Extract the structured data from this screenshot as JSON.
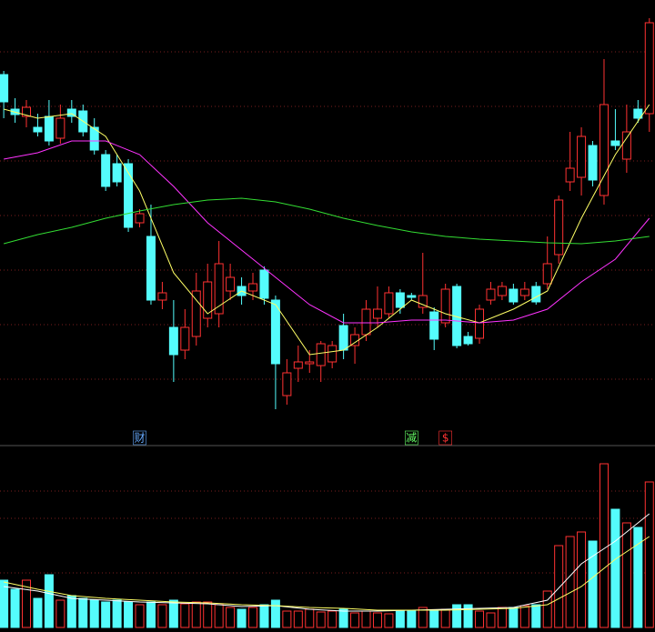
{
  "chart_data": {
    "type": "candlestick",
    "x": [
      0,
      1,
      2,
      3,
      4,
      5,
      6,
      7,
      8,
      9,
      10,
      11,
      12,
      13,
      14,
      15,
      16,
      17,
      18,
      19,
      20,
      21,
      22,
      23,
      24,
      25,
      26,
      27,
      28,
      29,
      30,
      31,
      32,
      33,
      34,
      35,
      36,
      37,
      38,
      39,
      40,
      41,
      42,
      43,
      44,
      45,
      46,
      47,
      48,
      49,
      50,
      51,
      52,
      53,
      54,
      55,
      56,
      57
    ],
    "xlim": [
      -0.33,
      57.5
    ],
    "ylim": [
      0,
      490
    ],
    "up_color": "#ff3232",
    "down_color": "#54fcfc",
    "grid_levels": [
      433,
      373,
      313,
      253,
      193,
      133,
      73
    ],
    "open": [
      408,
      370,
      362,
      350,
      362,
      338,
      370,
      368,
      350,
      320,
      310,
      310,
      245,
      230,
      160,
      130,
      105,
      120,
      140,
      145,
      170,
      175,
      170,
      193,
      160,
      55,
      85,
      90,
      88,
      92,
      132,
      110,
      122,
      140,
      145,
      168,
      165,
      152,
      147,
      135,
      175,
      120,
      118,
      160,
      165,
      172,
      165,
      175,
      178,
      210,
      290,
      295,
      330,
      275,
      335,
      315,
      370,
      365
    ],
    "high": [
      412,
      382,
      380,
      365,
      380,
      375,
      380,
      375,
      360,
      325,
      320,
      315,
      260,
      265,
      180,
      160,
      150,
      190,
      200,
      225,
      200,
      185,
      190,
      197,
      165,
      95,
      110,
      105,
      115,
      115,
      145,
      130,
      160,
      175,
      175,
      172,
      168,
      212,
      152,
      178,
      178,
      125,
      155,
      180,
      180,
      178,
      180,
      180,
      230,
      275,
      345,
      350,
      335,
      425,
      370,
      375,
      380,
      470
    ],
    "low": [
      360,
      355,
      350,
      340,
      330,
      332,
      355,
      340,
      320,
      280,
      285,
      235,
      240,
      155,
      150,
      70,
      95,
      110,
      130,
      130,
      160,
      155,
      160,
      155,
      40,
      45,
      70,
      80,
      70,
      85,
      95,
      90,
      115,
      130,
      140,
      145,
      160,
      145,
      105,
      130,
      107,
      110,
      112,
      155,
      160,
      155,
      160,
      155,
      172,
      200,
      280,
      275,
      285,
      265,
      325,
      300,
      355,
      345
    ],
    "close": [
      378,
      364,
      372,
      345,
      335,
      360,
      362,
      345,
      325,
      285,
      290,
      240,
      255,
      160,
      168,
      100,
      130,
      170,
      180,
      200,
      185,
      165,
      178,
      162,
      90,
      80,
      92,
      92,
      112,
      110,
      105,
      122,
      150,
      150,
      168,
      152,
      163,
      165,
      117,
      172,
      110,
      112,
      150,
      172,
      175,
      158,
      172,
      158,
      200,
      270,
      305,
      340,
      292,
      375,
      330,
      345,
      360,
      465
    ],
    "ma_x": [
      0,
      3,
      6,
      9,
      12,
      15,
      18,
      21,
      24,
      27,
      30,
      33,
      36,
      39,
      42,
      45,
      48,
      51,
      54,
      57
    ],
    "ma_series": [
      {
        "color": "#ffff66",
        "values": [
          370,
          360,
          365,
          340,
          280,
          190,
          145,
          170,
          155,
          100,
          105,
          130,
          160,
          145,
          135,
          150,
          170,
          250,
          320,
          375
        ]
      },
      {
        "color": "#ff33ff",
        "values": [
          315,
          322,
          335,
          335,
          320,
          285,
          245,
          215,
          185,
          155,
          135,
          135,
          138,
          138,
          135,
          138,
          150,
          180,
          205,
          250
        ]
      },
      {
        "color": "#33dd33",
        "values": [
          222,
          232,
          240,
          250,
          258,
          265,
          270,
          272,
          268,
          260,
          250,
          242,
          235,
          230,
          227,
          225,
          223,
          222,
          225,
          230
        ]
      }
    ],
    "volume": {
      "ylim": [
        0,
        200
      ],
      "grid_levels": [
        150,
        120,
        60
      ],
      "values": [
        52,
        42,
        52,
        32,
        58,
        30,
        35,
        32,
        30,
        28,
        30,
        28,
        25,
        28,
        25,
        30,
        26,
        28,
        28,
        25,
        22,
        20,
        22,
        25,
        30,
        18,
        18,
        20,
        17,
        18,
        20,
        16,
        18,
        16,
        15,
        18,
        18,
        22,
        18,
        20,
        25,
        25,
        18,
        16,
        22,
        22,
        24,
        25,
        40,
        90,
        100,
        105,
        95,
        180,
        130,
        115,
        110,
        160
      ],
      "ma_series": [
        {
          "color": "#ffffff",
          "values": [
            45,
            40,
            32,
            30,
            28,
            27,
            26,
            23,
            24,
            20,
            18,
            18,
            19,
            20,
            21,
            22,
            30,
            70,
            95,
            125
          ]
        },
        {
          "color": "#ffff66",
          "values": [
            50,
            42,
            35,
            32,
            30,
            28,
            27,
            25,
            24,
            22,
            21,
            19,
            19,
            19,
            20,
            21,
            25,
            45,
            75,
            100
          ]
        }
      ]
    },
    "annotations": [
      {
        "text": "财",
        "x": 12,
        "color": "#66aaff"
      },
      {
        "text": "减",
        "x": 36,
        "color": "#66ff66"
      },
      {
        "text": "$",
        "x": 39,
        "color": "#ff3232"
      }
    ]
  }
}
